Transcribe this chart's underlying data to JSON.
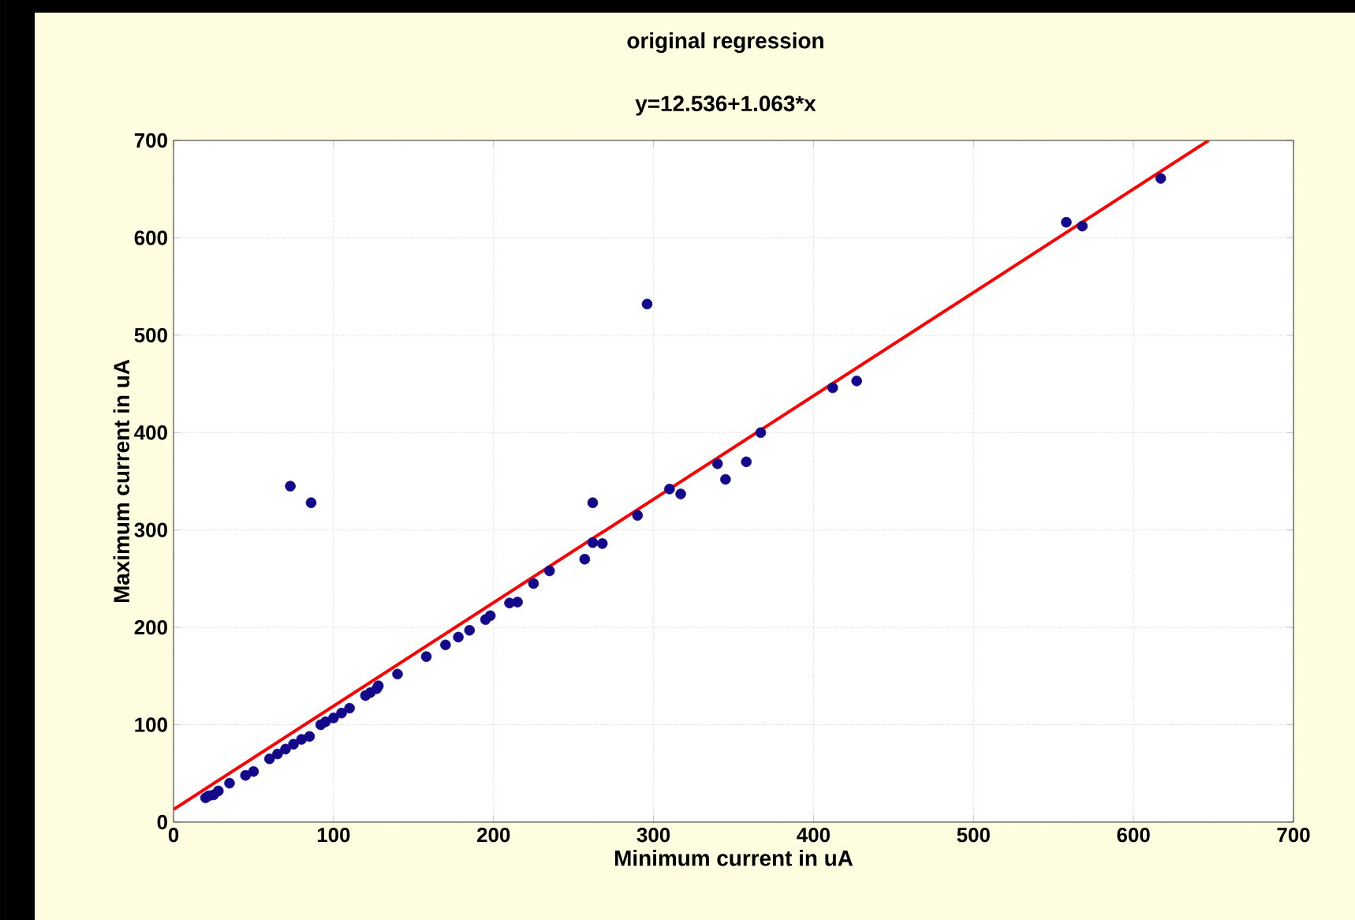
{
  "chart_data": {
    "type": "scatter",
    "title": "original regression",
    "subtitle": "y=12.536+1.063*x",
    "xlabel": "Minimum current in uA",
    "ylabel": "Maximum current in uA",
    "xlim": [
      0,
      700
    ],
    "ylim": [
      0,
      700
    ],
    "xticks": [
      0,
      100,
      200,
      300,
      400,
      500,
      600,
      700
    ],
    "yticks": [
      0,
      100,
      200,
      300,
      400,
      500,
      600,
      700
    ],
    "grid": true,
    "series": [
      {
        "marker": "circle",
        "color": "#14088a",
        "x": [
          20,
          22,
          25,
          28,
          35,
          45,
          50,
          60,
          65,
          70,
          75,
          80,
          85,
          92,
          95,
          100,
          105,
          110,
          120,
          123,
          127,
          128,
          140,
          158,
          170,
          178,
          185,
          195,
          198,
          210,
          215,
          225,
          235,
          257,
          262,
          268,
          290,
          310,
          317,
          340,
          345,
          358,
          367,
          412,
          427,
          558,
          568,
          617,
          73,
          86,
          262,
          296
        ],
        "values": [
          25,
          27,
          28,
          32,
          40,
          48,
          52,
          65,
          70,
          75,
          80,
          85,
          88,
          100,
          103,
          107,
          112,
          117,
          130,
          133,
          137,
          140,
          152,
          170,
          182,
          190,
          197,
          208,
          212,
          225,
          226,
          245,
          258,
          270,
          287,
          286,
          315,
          342,
          337,
          368,
          352,
          370,
          400,
          446,
          453,
          616,
          612,
          661,
          345,
          328,
          328,
          532
        ]
      },
      {
        "type": "line",
        "marker": "none",
        "color": "#ff0000",
        "x": [
          0,
          647
        ],
        "values": [
          13,
          700
        ]
      }
    ]
  }
}
